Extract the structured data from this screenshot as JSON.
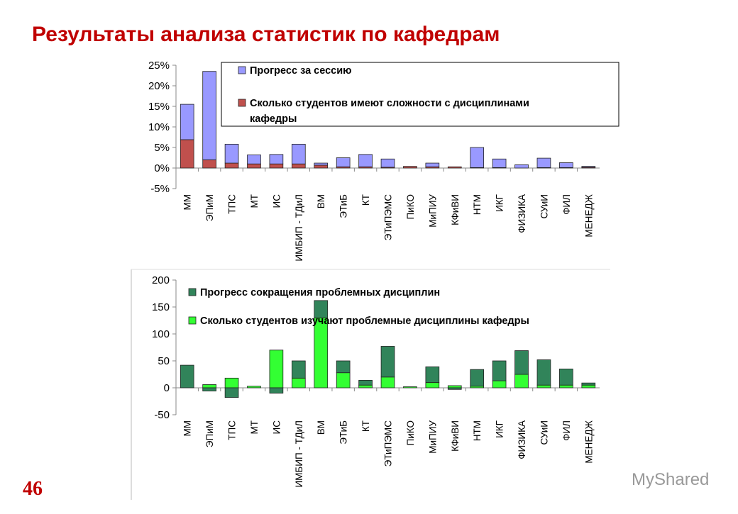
{
  "title": "Результаты анализа статистик по кафедрам",
  "page_number": "46",
  "watermark": "MyShared",
  "chart_data": [
    {
      "type": "bar",
      "stacked": true,
      "categories": [
        "ММ",
        "ЭПиМ",
        "ТПС",
        "МТ",
        "ИС",
        "ИМБИП - ТДиЛ",
        "ВМ",
        "ЭТиБ",
        "КТ",
        "ЭТиПЭМС",
        "ПиКО",
        "МиПИУ",
        "КФиВИ",
        "НТМ",
        "ИКГ",
        "ФИЗИКА",
        "СУиИ",
        "ФИЛ",
        "МЕНЕДЖ"
      ],
      "series": [
        {
          "name": "Прогресс за сессию",
          "color": "#9999ff",
          "values": [
            8.6,
            21.5,
            4.6,
            2.2,
            2.3,
            4.8,
            0.5,
            2.2,
            3,
            2,
            0,
            0.9,
            0,
            4.9,
            2.1,
            0.8,
            2.3,
            1.2,
            0.2
          ]
        },
        {
          "name": "Сколько студентов имеют сложности с дисциплинами кафедры",
          "color": "#c0504d",
          "values": [
            6.9,
            2,
            1.2,
            1,
            1,
            1,
            0.7,
            0.3,
            0.3,
            0.2,
            0.4,
            0.3,
            0.3,
            0.1,
            0.1,
            0,
            0.1,
            0.1,
            0.2
          ]
        }
      ],
      "ylim": [
        -5,
        25
      ],
      "yticks": [
        {
          "value": -5,
          "label": "-5%"
        },
        {
          "value": 0,
          "label": "0%"
        },
        {
          "value": 5,
          "label": "5%"
        },
        {
          "value": 10,
          "label": "10%"
        },
        {
          "value": 15,
          "label": "15%"
        },
        {
          "value": 20,
          "label": "20%"
        },
        {
          "value": 25,
          "label": "25%"
        }
      ]
    },
    {
      "type": "bar",
      "stacked": true,
      "categories": [
        "ММ",
        "ЭПиМ",
        "ТПС",
        "МТ",
        "ИС",
        "ИМБИП - ТДиЛ",
        "ВМ",
        "ЭТиБ",
        "КТ",
        "ЭТиПЭМС",
        "ПиКО",
        "МиПИУ",
        "КФиВИ",
        "НТМ",
        "ИКГ",
        "ФИЗИКА",
        "СУиИ",
        "ФИЛ",
        "МЕНЕДЖ"
      ],
      "series": [
        {
          "name": "Прогресс сокращения проблемных дисциплин",
          "color": "#31845a",
          "values": [
            42,
            -6,
            -18,
            0,
            -10,
            32,
            32,
            22,
            9,
            57,
            0,
            29,
            -3,
            31,
            37,
            44,
            47,
            30,
            4
          ]
        },
        {
          "name": "Сколько студентов изучают проблемные дисциплины кафедры",
          "color": "#33ff33",
          "values": [
            0,
            6,
            18,
            3,
            70,
            18,
            130,
            28,
            5,
            20,
            2,
            10,
            4,
            3,
            13,
            25,
            5,
            5,
            5
          ]
        }
      ],
      "ylim": [
        -50,
        200
      ],
      "yticks": [
        -50,
        0,
        50,
        100,
        150,
        200
      ]
    }
  ]
}
